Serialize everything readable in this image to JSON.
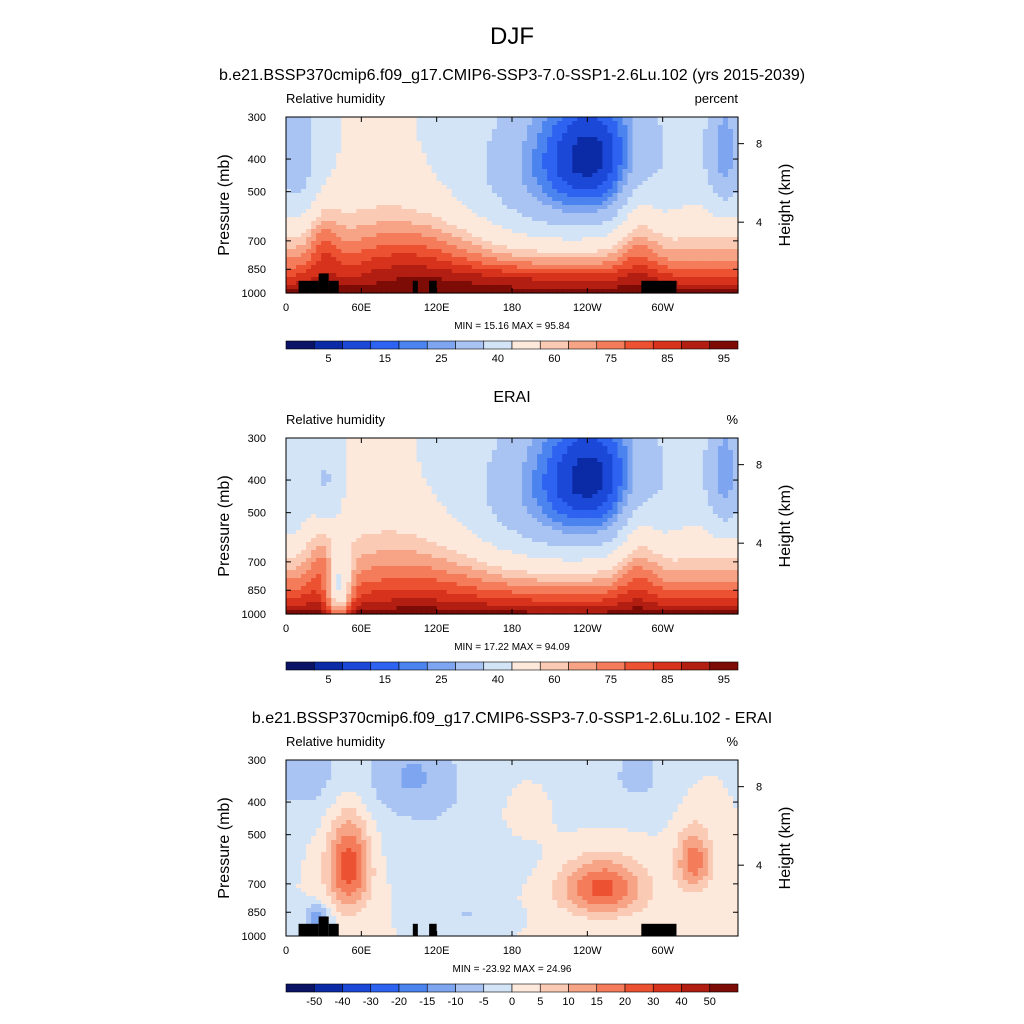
{
  "figure": {
    "title": "DJF"
  },
  "colors": {
    "abs_scale": [
      "#0a1366",
      "#0b2ba6",
      "#1c48d8",
      "#2d63f0",
      "#4b83ef",
      "#7ea5ef",
      "#a9c4f2",
      "#d3e4f6",
      "#fde8dc",
      "#fbcab4",
      "#f7a386",
      "#f47c5b",
      "#ec5231",
      "#d6321c",
      "#b21e12",
      "#7d0b06"
    ],
    "diff_scale": [
      "#0a1366",
      "#0b2ba6",
      "#1c48d8",
      "#2d63f0",
      "#4b83ef",
      "#7ea5ef",
      "#a9c4f2",
      "#d3e4f6",
      "#fde8dc",
      "#fbcab4",
      "#f7a386",
      "#f47c5b",
      "#ec5231",
      "#d6321c",
      "#b21e12",
      "#7d0b06"
    ],
    "terrain": "#000000"
  },
  "chart_data": [
    {
      "type": "heatmap",
      "title": "b.e21.BSSP370cmip6.f09_g17.CMIP6-SSP3-7.0-SSP1-2.6Lu.102 (yrs 2015-2039)",
      "left_label": "Relative humidity",
      "right_label": "percent",
      "ylabel": "Pressure (mb)",
      "y2label": "Height (km)",
      "ylim": [
        1000,
        300
      ],
      "y_ticks": [
        "300",
        "400",
        "500",
        "700",
        "850",
        "1000"
      ],
      "y2_ticks": [
        "8",
        "4"
      ],
      "x_ticks": [
        "0",
        "60E",
        "120E",
        "180",
        "120W",
        "60W"
      ],
      "xlim": [
        0,
        360
      ],
      "min_max": "MIN = 15.16  MAX = 95.84",
      "colorbar_labels": [
        "5",
        "15",
        "25",
        "40",
        "60",
        "75",
        "85",
        "95"
      ],
      "colorbar_label_bins": [
        1,
        3,
        5,
        7,
        9,
        11,
        13,
        15
      ],
      "levels": [
        5,
        10,
        15,
        20,
        25,
        30,
        40,
        50,
        60,
        65,
        70,
        75,
        80,
        85,
        90
      ],
      "field": "abs",
      "terrain": [
        [
          10,
          26,
          920
        ],
        [
          26,
          34,
          875
        ],
        [
          34,
          42,
          920
        ],
        [
          101,
          105,
          920
        ],
        [
          114,
          120,
          920
        ],
        [
          283,
          311,
          920
        ]
      ]
    },
    {
      "type": "heatmap",
      "title": "ERAI",
      "left_label": "Relative humidity",
      "right_label": "%",
      "ylabel": "Pressure (mb)",
      "y2label": "Height (km)",
      "ylim": [
        1000,
        300
      ],
      "y_ticks": [
        "300",
        "400",
        "500",
        "700",
        "850",
        "1000"
      ],
      "y2_ticks": [
        "8",
        "4"
      ],
      "x_ticks": [
        "0",
        "60E",
        "120E",
        "180",
        "120W",
        "60W"
      ],
      "xlim": [
        0,
        360
      ],
      "min_max": "MIN = 17.22  MAX = 94.09",
      "colorbar_labels": [
        "5",
        "15",
        "25",
        "40",
        "60",
        "75",
        "85",
        "95"
      ],
      "colorbar_label_bins": [
        1,
        3,
        5,
        7,
        9,
        11,
        13,
        15
      ],
      "levels": [
        5,
        10,
        15,
        20,
        25,
        30,
        40,
        50,
        60,
        65,
        70,
        75,
        80,
        85,
        90
      ],
      "field": "obs",
      "terrain": []
    },
    {
      "type": "heatmap",
      "title": "b.e21.BSSP370cmip6.f09_g17.CMIP6-SSP3-7.0-SSP1-2.6Lu.102 - ERAI",
      "left_label": "Relative humidity",
      "right_label": "%",
      "ylabel": "Pressure (mb)",
      "y2label": "Height (km)",
      "ylim": [
        1000,
        300
      ],
      "y_ticks": [
        "300",
        "400",
        "500",
        "700",
        "850",
        "1000"
      ],
      "y2_ticks": [
        "8",
        "4"
      ],
      "x_ticks": [
        "0",
        "60E",
        "120E",
        "180",
        "120W",
        "60W"
      ],
      "xlim": [
        0,
        360
      ],
      "min_max": "MIN = -23.92  MAX =  24.96",
      "colorbar_labels": [
        "-50",
        "-40",
        "-30",
        "-20",
        "-15",
        "-10",
        "-5",
        "0",
        "5",
        "10",
        "15",
        "20",
        "30",
        "40",
        "50"
      ],
      "colorbar_label_bins": [
        1,
        2,
        3,
        4,
        5,
        6,
        7,
        8,
        9,
        10,
        11,
        12,
        13,
        14,
        15
      ],
      "levels": [
        -50,
        -40,
        -30,
        -20,
        -15,
        -10,
        -5,
        0,
        5,
        10,
        15,
        20,
        30,
        40,
        50
      ],
      "field": "diff",
      "terrain": [
        [
          10,
          26,
          920
        ],
        [
          26,
          34,
          875
        ],
        [
          34,
          42,
          920
        ],
        [
          101,
          105,
          920
        ],
        [
          114,
          120,
          920
        ],
        [
          283,
          311,
          920
        ]
      ]
    }
  ]
}
